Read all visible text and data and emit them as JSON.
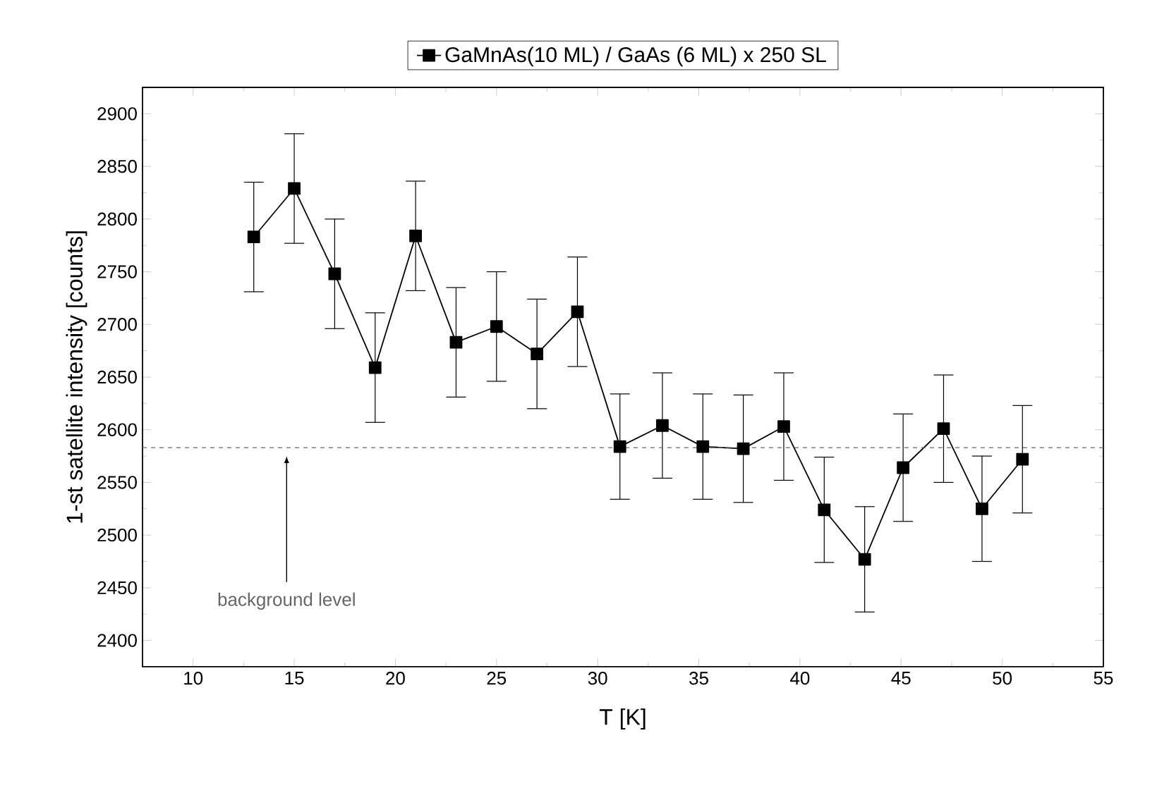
{
  "chart_data": {
    "type": "line",
    "xlabel": "T [K]",
    "ylabel": "1-st satellite intensity [counts]",
    "x": [
      13,
      15,
      17,
      19,
      21,
      23,
      25,
      27,
      29,
      31.1,
      33.2,
      35.2,
      37.2,
      39.2,
      41.2,
      43.2,
      45.1,
      47.1,
      49,
      51
    ],
    "series": [
      {
        "name": "GaMnAs(10 ML) / GaAs (6 ML) x 250 SL",
        "color": "#000000",
        "values": [
          2783,
          2829,
          2748,
          2659,
          2784,
          2683,
          2698,
          2672,
          2712,
          2584,
          2604,
          2584,
          2582,
          2603,
          2524,
          2477,
          2564,
          2601,
          2525,
          2572
        ],
        "errors": [
          52,
          52,
          52,
          52,
          52,
          52,
          52,
          52,
          52,
          50,
          50,
          50,
          51,
          51,
          50,
          50,
          51,
          51,
          50,
          51
        ]
      }
    ],
    "xlim": [
      7.5,
      55
    ],
    "ylim": [
      2375,
      2925
    ],
    "xticks": [
      10,
      15,
      20,
      25,
      30,
      35,
      40,
      45,
      50,
      55
    ],
    "yticks": [
      2400,
      2450,
      2500,
      2550,
      2600,
      2650,
      2700,
      2750,
      2800,
      2850,
      2900
    ],
    "ref_lines": [
      {
        "axis": "y",
        "value": 2583,
        "color": "#666666",
        "line_style": "dashed"
      }
    ],
    "annotations": [
      "background level"
    ],
    "legend": "top",
    "marker": "square",
    "line_style": "solid",
    "grid": false
  }
}
